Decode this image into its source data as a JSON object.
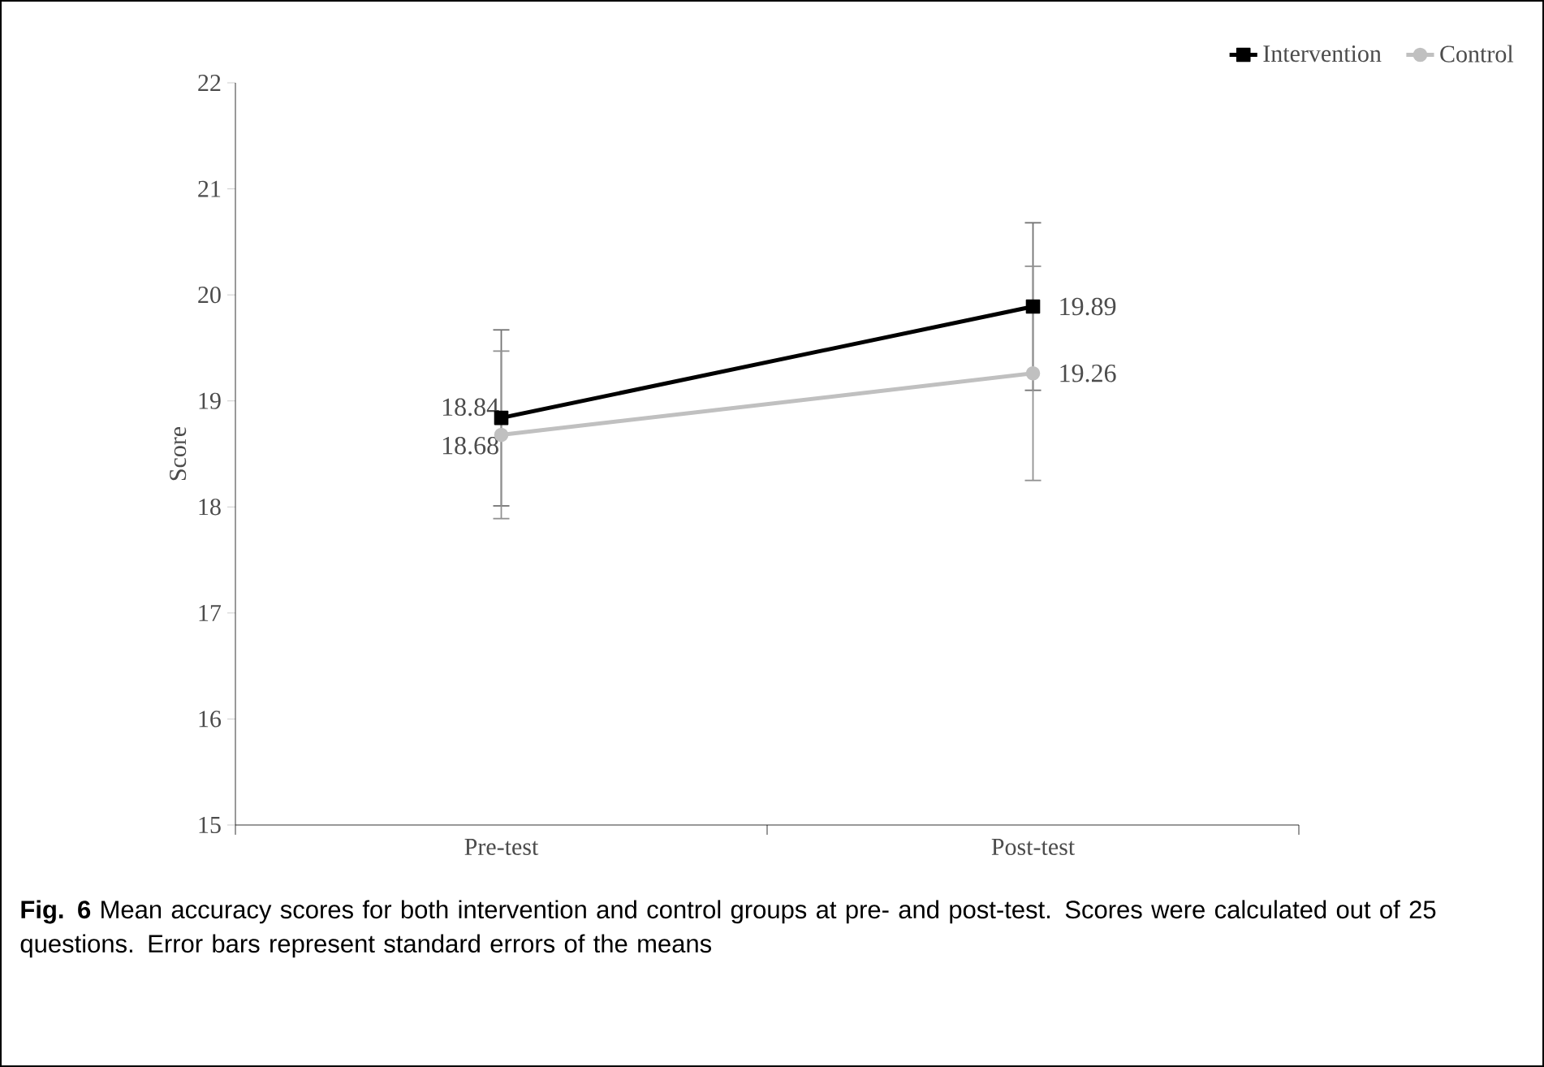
{
  "chart_data": {
    "type": "line",
    "ylabel": "Score",
    "categories": [
      "Pre-test",
      "Post-test"
    ],
    "series": [
      {
        "name": "Intervention",
        "color": "#000000",
        "marker": "square",
        "values": [
          18.84,
          19.89
        ],
        "errors": [
          0.83,
          0.79
        ]
      },
      {
        "name": "Control",
        "color": "#c0c0c0",
        "marker": "circle",
        "values": [
          18.68,
          19.26
        ],
        "errors": [
          0.79,
          1.01
        ]
      }
    ],
    "ylim": [
      15,
      22
    ],
    "yticks": [
      15,
      16,
      17,
      18,
      19,
      20,
      21,
      22
    ],
    "data_labels": true,
    "legend": "top right",
    "grid": false,
    "line_style": "solid",
    "annotations": [
      "**Fig. 6** Mean accuracy scores for both intervention and control groups at pre- and post-test. Scores were calculated out of 25 questions. Error bars represent standard errors of the means"
    ]
  }
}
